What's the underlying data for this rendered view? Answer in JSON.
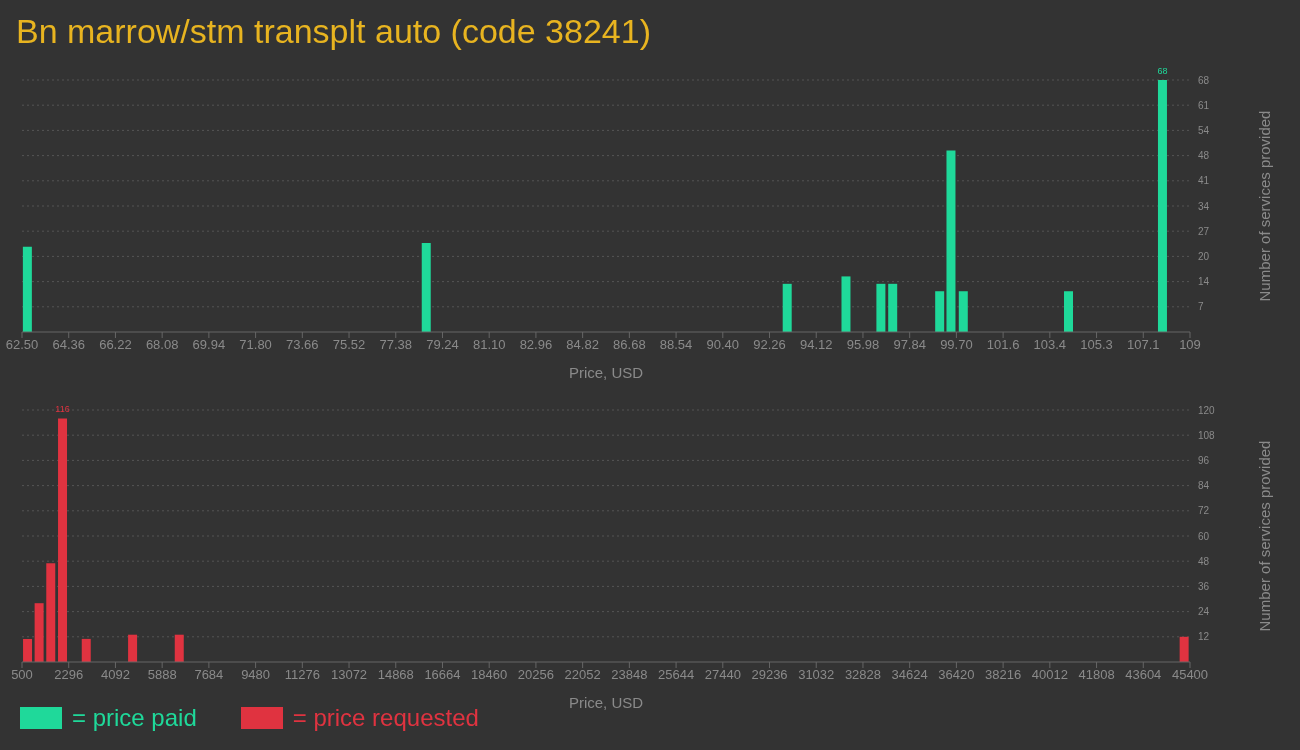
{
  "chart_data": [
    {
      "type": "bar",
      "title": "Bn marrow/stm transplt auto (code 38241)",
      "xlabel": "Price, USD",
      "ylabel": "Number of services provided",
      "x": [
        62.72,
        78.6,
        92.97,
        95.31,
        96.7,
        97.17,
        99.04,
        99.49,
        99.98,
        104.17,
        107.91
      ],
      "series": [
        {
          "name": "= price paid",
          "color": "#1fd99a",
          "values": [
            23,
            24,
            13,
            15,
            13,
            13,
            11,
            49,
            11,
            11,
            68
          ],
          "value_labels": [
            null,
            null,
            null,
            null,
            null,
            null,
            null,
            null,
            null,
            null,
            "68"
          ]
        }
      ],
      "xlim": [
        62.5,
        109
      ],
      "xticks": [
        {
          "value": 62.5,
          "label": "62.50"
        },
        64.36,
        66.22,
        68.08,
        69.94,
        {
          "value": 71.8,
          "label": "71.80"
        },
        73.66,
        75.52,
        77.38,
        79.24,
        {
          "value": 81.1,
          "label": "81.10"
        },
        82.96,
        84.82,
        86.68,
        88.54,
        {
          "value": 90.4,
          "label": "90.40"
        },
        92.26,
        94.12,
        95.98,
        97.84,
        {
          "value": 99.7,
          "label": "99.70"
        },
        {
          "value": 101.56,
          "label": "101.6"
        },
        {
          "value": 103.42,
          "label": "103.4"
        },
        {
          "value": 105.28,
          "label": "105.3"
        },
        {
          "value": 107.14,
          "label": "107.1"
        },
        109
      ],
      "ylim": [
        0,
        68
      ],
      "yticks": [
        {
          "value": 6.8,
          "label": "7"
        },
        {
          "value": 13.6,
          "label": "14"
        },
        {
          "value": 20.4,
          "label": "20"
        },
        {
          "value": 27.2,
          "label": "27"
        },
        34,
        {
          "value": 40.8,
          "label": "41"
        },
        {
          "value": 47.6,
          "label": "48"
        },
        {
          "value": 54.4,
          "label": "54"
        },
        {
          "value": 61.2,
          "label": "61"
        },
        68
      ],
      "grid": "y",
      "legend": "bottom left"
    },
    {
      "type": "bar",
      "xlabel": "Price, USD",
      "ylabel": "Number of services provided",
      "x": [
        724,
        1169,
        1617,
        2069,
        2981,
        4762,
        6556,
        45186
      ],
      "series": [
        {
          "name": "= price requested",
          "color": "#e03340",
          "values": [
            11,
            28,
            47,
            116,
            11,
            13,
            13,
            12
          ],
          "value_labels": [
            null,
            null,
            null,
            "116",
            null,
            null,
            null,
            null
          ]
        }
      ],
      "xlim": [
        500,
        45400
      ],
      "xticks": [
        500,
        2296,
        4092,
        5888,
        7684,
        9480,
        11276,
        13072,
        14868,
        16664,
        18460,
        20256,
        22052,
        23848,
        25644,
        27440,
        29236,
        31032,
        32828,
        34624,
        36420,
        38216,
        40012,
        41808,
        43604,
        45400
      ],
      "ylim": [
        0,
        120
      ],
      "yticks": [
        12,
        24,
        36,
        48,
        60,
        72,
        84,
        96,
        108,
        120
      ],
      "grid": "y",
      "legend": "bottom left"
    }
  ]
}
